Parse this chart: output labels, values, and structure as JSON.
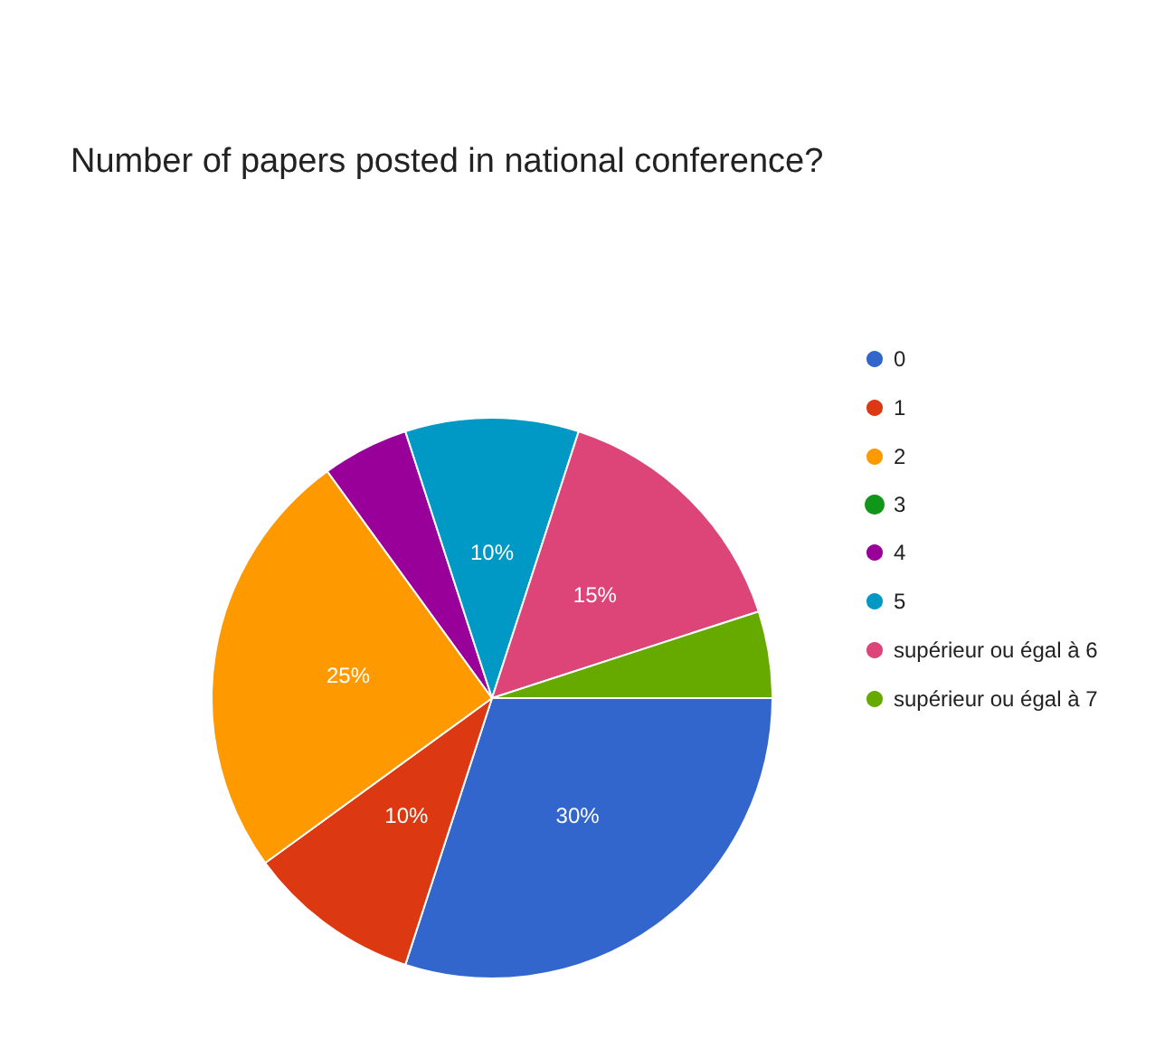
{
  "chart_data": {
    "type": "pie",
    "title": "Number of papers posted in national conference?",
    "categories": [
      "0",
      "1",
      "2",
      "3",
      "4",
      "5",
      "supérieur ou égal à 6",
      "supérieur ou égal à 7"
    ],
    "values": [
      30,
      10,
      25,
      0,
      5,
      10,
      15,
      5
    ],
    "colors": [
      "#3366cc",
      "#dc3912",
      "#ff9900",
      "#109618",
      "#990099",
      "#0099c6",
      "#dd4477",
      "#66aa00"
    ],
    "value_labels": [
      "30%",
      "10%",
      "25%",
      null,
      null,
      "10%",
      "15%",
      null
    ],
    "legend": "right"
  }
}
